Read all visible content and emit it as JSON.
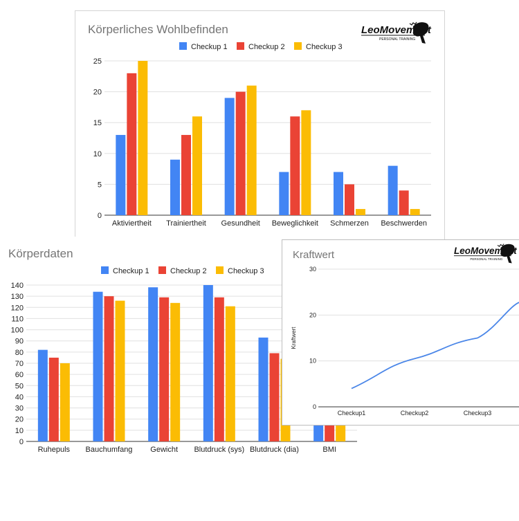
{
  "colors": {
    "checkup1": "#4285f4",
    "checkup2": "#ea4335",
    "checkup3": "#fbbc04",
    "line": "#4a86e8",
    "grid": "#e0e0e0"
  },
  "logo": {
    "text": "LeoMovement",
    "subtext": "PERSONAL TRAINING"
  },
  "chart_data": [
    {
      "type": "bar",
      "title": "Körperliches Wohlbefinden",
      "categories": [
        "Aktiviertheit",
        "Trainiertheit",
        "Gesundheit",
        "Beweglichkeit",
        "Schmerzen",
        "Beschwerden"
      ],
      "series": [
        {
          "name": "Checkup 1",
          "values": [
            13,
            9,
            19,
            7,
            7,
            8
          ]
        },
        {
          "name": "Checkup 2",
          "values": [
            23,
            13,
            20,
            16,
            5,
            4
          ]
        },
        {
          "name": "Checkup 3",
          "values": [
            25,
            16,
            21,
            17,
            1,
            1
          ]
        }
      ],
      "yticks": [
        "0",
        "5",
        "10",
        "15",
        "20",
        "25"
      ],
      "ylim": [
        0,
        25
      ],
      "legend": "top",
      "grid": true
    },
    {
      "type": "bar",
      "title": "Körperdaten",
      "categories": [
        "Ruhepuls",
        "Bauchumfang",
        "Gewicht",
        "Blutdruck (sys)",
        "Blutdruck (dia)",
        "BMI"
      ],
      "series": [
        {
          "name": "Checkup 1",
          "values": [
            82,
            134,
            138,
            140,
            93,
            22
          ]
        },
        {
          "name": "Checkup 2",
          "values": [
            75,
            130,
            129,
            129,
            79,
            22
          ]
        },
        {
          "name": "Checkup 3",
          "values": [
            70,
            126,
            124,
            121,
            74,
            22
          ]
        }
      ],
      "yticks": [
        "0",
        "10",
        "20",
        "30",
        "40",
        "50",
        "60",
        "70",
        "80",
        "90",
        "100",
        "110",
        "120",
        "130",
        "140"
      ],
      "ylim": [
        0,
        140
      ],
      "legend": "top",
      "grid": true
    },
    {
      "type": "line",
      "title": "Kraftwert",
      "ylabel": "Kraftwert",
      "x": [
        "Checkup1",
        "Checkup2",
        "Checkup3"
      ],
      "y": [
        4,
        10.5,
        15
      ],
      "yticks": [
        "0",
        "10",
        "20",
        "30"
      ],
      "ylim": [
        0,
        30
      ],
      "grid": true
    }
  ]
}
